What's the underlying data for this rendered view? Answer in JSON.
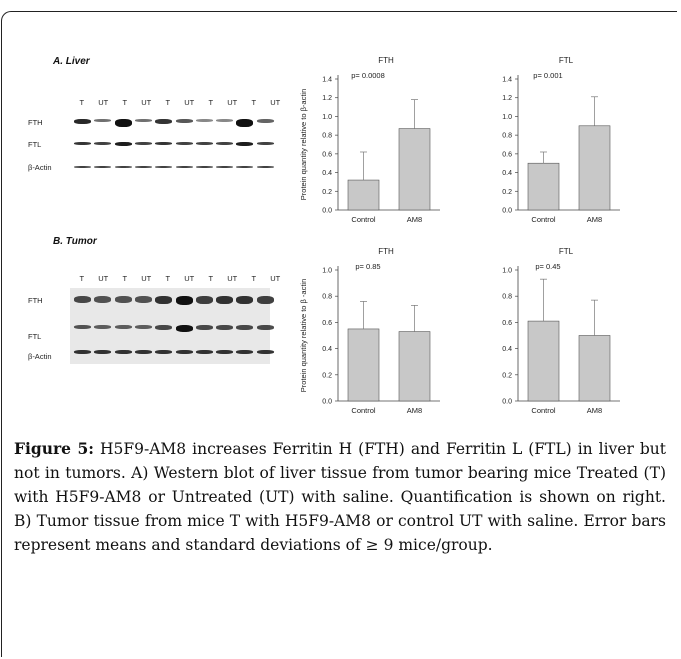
{
  "figure": {
    "panel_a_title": "A. Liver",
    "panel_b_title": "B. Tumor",
    "lanes": [
      "T",
      "UT",
      "T",
      "UT",
      "T",
      "UT",
      "T",
      "UT",
      "T",
      "UT"
    ],
    "blot_a_rows": [
      "FTH",
      "FTL",
      "β-Actin"
    ],
    "blot_b_rows": [
      "FTH",
      "FTL",
      "β-Actin"
    ]
  },
  "caption": {
    "label": "Figure 5:",
    "text": " H5F9-AM8 increases Ferritin H (FTH) and Ferritin L (FTL) in liver but not in tumors. A) Western blot of liver tissue from tumor bearing mice Treated (T) with H5F9-AM8 or Untreated (UT) with saline. Quantification is shown on right. B) Tumor tissue from mice T with H5F9-AM8 or control UT with saline. Error bars represent means and standard deviations of ≥ 9 mice/group."
  },
  "chart_data": [
    {
      "type": "bar",
      "title": "FTH",
      "annotation": "p= 0.0008",
      "ylabel": "Protein quantity relative to β-actin",
      "categories": [
        "Control",
        "AM8"
      ],
      "values": [
        0.32,
        0.87
      ],
      "errors": [
        0.3,
        0.31
      ],
      "ylim": [
        0,
        1.4
      ],
      "yticks": [
        "0.0",
        "0.2",
        "0.4",
        "0.6",
        "0.8",
        "1.0",
        "1.2",
        "1.4"
      ],
      "bar_color": "#c8c8c8"
    },
    {
      "type": "bar",
      "title": "FTL",
      "annotation": "p= 0.001",
      "ylabel": "",
      "categories": [
        "Control",
        "AM8"
      ],
      "values": [
        0.5,
        0.9
      ],
      "errors": [
        0.12,
        0.31
      ],
      "ylim": [
        0,
        1.4
      ],
      "yticks": [
        "0.0",
        "0.2",
        "0.4",
        "0.6",
        "0.8",
        "1.0",
        "1.2",
        "1.4"
      ],
      "bar_color": "#c8c8c8"
    },
    {
      "type": "bar",
      "title": "FTH",
      "annotation": "p= 0.85",
      "ylabel": "Protein quantity relative to β -actin",
      "categories": [
        "Control",
        "AM8"
      ],
      "values": [
        0.55,
        0.53
      ],
      "errors": [
        0.21,
        0.2
      ],
      "ylim": [
        0,
        1.0
      ],
      "yticks": [
        "0.0",
        "0.2",
        "0.4",
        "0.6",
        "0.8",
        "1.0"
      ],
      "bar_color": "#c8c8c8"
    },
    {
      "type": "bar",
      "title": "FTL",
      "annotation": "p= 0.45",
      "ylabel": "",
      "categories": [
        "Control",
        "AM8"
      ],
      "values": [
        0.61,
        0.5
      ],
      "errors": [
        0.32,
        0.27
      ],
      "ylim": [
        0,
        1.0
      ],
      "yticks": [
        "0.0",
        "0.2",
        "0.4",
        "0.6",
        "0.8",
        "1.0"
      ],
      "bar_color": "#c8c8c8"
    }
  ]
}
